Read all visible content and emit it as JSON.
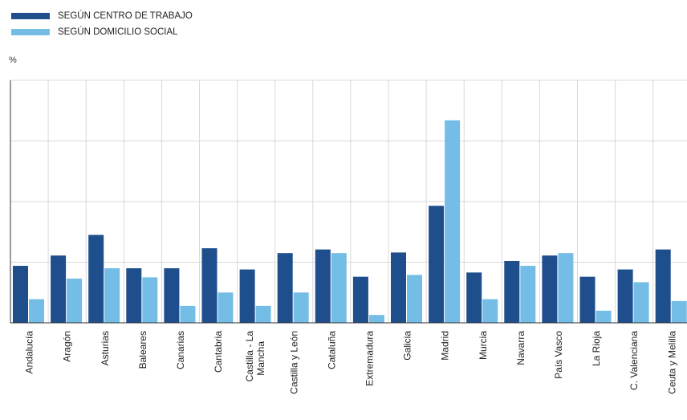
{
  "chart_data": {
    "type": "bar",
    "ylabel": "%",
    "grid": true,
    "legend_position": "top-left",
    "categories": [
      "Andalucía",
      "Aragón",
      "Asturias",
      "Baleares",
      "Canarias",
      "Cantabria",
      "Castilla - La Mancha",
      "Castilla y León",
      "Cataluña",
      "Extremadura",
      "Galicia",
      "Madrid",
      "Murcia",
      "Navarra",
      "País Vasco",
      "La Rioja",
      "C. Valenciana",
      "Ceuta y Melilla"
    ],
    "series": [
      {
        "name": "SEGÚN CENTRO DE TRABAJO",
        "color": "#1f4e8c",
        "values": [
          0.94,
          1.11,
          1.45,
          0.9,
          0.9,
          1.23,
          0.88,
          1.15,
          1.21,
          0.76,
          1.16,
          1.93,
          0.83,
          1.02,
          1.11,
          0.76,
          0.88,
          1.21
        ]
      },
      {
        "name": "SEGÚN DOMICILIO SOCIAL",
        "color": "#74bde6",
        "values": [
          0.39,
          0.73,
          0.9,
          0.75,
          0.28,
          0.5,
          0.28,
          0.5,
          1.15,
          0.13,
          0.79,
          3.34,
          0.39,
          0.94,
          1.15,
          0.2,
          0.67,
          0.36
        ]
      }
    ],
    "ylim": [
      0,
      4
    ]
  }
}
